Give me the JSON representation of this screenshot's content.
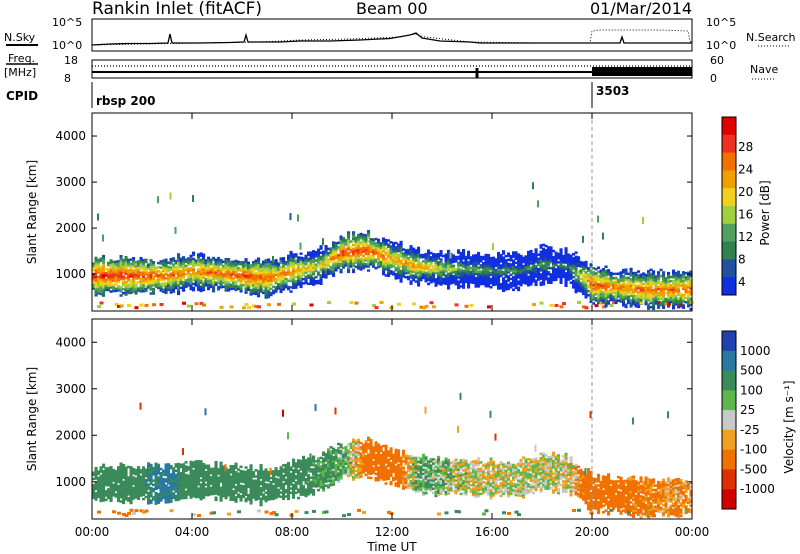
{
  "header": {
    "title": "Rankin Inlet (fitACF)",
    "beam": "Beam 00",
    "date": "01/Mar/2014"
  },
  "top_panel": {
    "nsky_label": "N.Sky",
    "nsearch_label": "N.Search",
    "count_ticks": [
      "10^5",
      "10^0"
    ],
    "freq_label": "Freq.",
    "freq_unit": "[MHz]",
    "freq_ticks": [
      "18",
      "8"
    ],
    "nave_label": "Nave",
    "nave_ticks": [
      "60",
      "0"
    ],
    "cpid_label": "CPID",
    "cpid_values": [
      "rbsp 200",
      "3503"
    ]
  },
  "power_colorbar": {
    "label": "Power [dB]",
    "ticks": [
      "28",
      "24",
      "20",
      "16",
      "12",
      "8",
      "4"
    ],
    "colors": [
      "#e00000",
      "#f03020",
      "#f07000",
      "#f0a000",
      "#f0d020",
      "#a0d040",
      "#50a060",
      "#308050",
      "#2050a0",
      "#1030e0"
    ]
  },
  "velocity_colorbar": {
    "label": "Velocity [m s⁻¹]",
    "ticks": [
      "1000",
      "500",
      "100",
      "25",
      "-25",
      "-100",
      "-500",
      "-1000"
    ],
    "colors": [
      "#2040b0",
      "#2878a0",
      "#3a8a5a",
      "#5cb84a",
      "#c8c8c8",
      "#f0a020",
      "#f07000",
      "#e03000",
      "#d00000"
    ]
  },
  "chart_data": [
    {
      "type": "heatmap",
      "name": "power",
      "ylabel": "Slant Range [km]",
      "xlabel": "Time UT",
      "x_ticks": [
        "00:00",
        "04:00",
        "08:00",
        "12:00",
        "16:00",
        "20:00",
        "00:00"
      ],
      "y_ticks": [
        1000,
        2000,
        3000,
        4000
      ],
      "xlim_hours": [
        0,
        24
      ],
      "ylim_km": [
        200,
        4500
      ],
      "x": [
        0,
        1,
        2,
        3,
        4,
        5,
        6,
        7,
        8,
        9,
        10,
        11,
        12,
        13,
        14,
        15,
        16,
        17,
        18,
        19,
        20,
        21,
        22,
        23,
        24
      ],
      "echo_center_km": [
        950,
        950,
        950,
        950,
        1050,
        1000,
        950,
        900,
        1050,
        1150,
        1450,
        1500,
        1300,
        1150,
        1100,
        1100,
        1050,
        1050,
        1200,
        1150,
        750,
        700,
        650,
        650,
        650
      ],
      "peak_power_db": [
        30,
        30,
        28,
        26,
        24,
        26,
        28,
        26,
        24,
        18,
        28,
        28,
        22,
        22,
        16,
        12,
        10,
        8,
        10,
        8,
        28,
        24,
        26,
        26,
        26
      ]
    },
    {
      "type": "heatmap",
      "name": "velocity",
      "ylabel": "Slant Range [km]",
      "xlabel": "Time UT",
      "x_ticks": [
        "00:00",
        "04:00",
        "08:00",
        "12:00",
        "16:00",
        "20:00",
        "00:00"
      ],
      "y_ticks": [
        1000,
        2000,
        3000,
        4000
      ],
      "xlim_hours": [
        0,
        24
      ],
      "ylim_km": [
        200,
        4500
      ],
      "x": [
        0,
        1,
        2,
        3,
        4,
        5,
        6,
        7,
        8,
        9,
        10,
        11,
        12,
        13,
        14,
        15,
        16,
        17,
        18,
        19,
        20,
        21,
        22,
        23,
        24
      ],
      "typical_velocity_ms": [
        250,
        300,
        400,
        600,
        250,
        300,
        200,
        250,
        250,
        150,
        100,
        -200,
        -300,
        100,
        50,
        0,
        0,
        0,
        0,
        0,
        -300,
        -200,
        -150,
        -100,
        -100
      ]
    }
  ]
}
